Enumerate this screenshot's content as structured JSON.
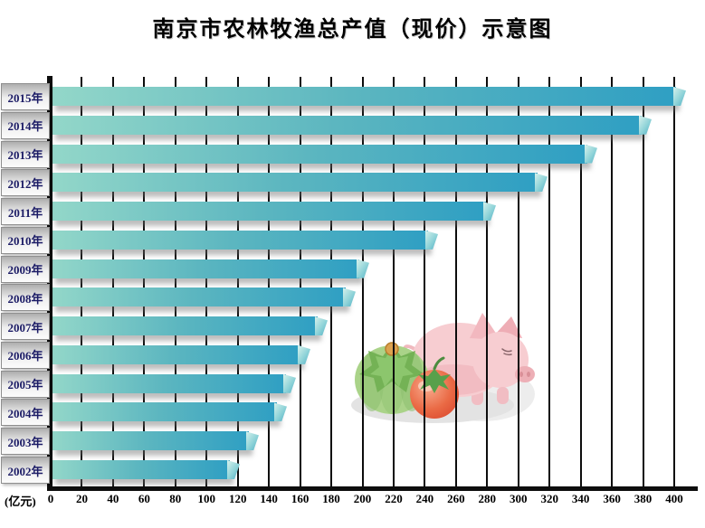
{
  "chart_data": {
    "type": "bar",
    "orientation": "horizontal",
    "title": "南京市农林牧渔总产值（现价）示意图",
    "xlabel": "(亿元)",
    "categories": [
      "2015年",
      "2014年",
      "2013年",
      "2012年",
      "2011年",
      "2010年",
      "2009年",
      "2008年",
      "2007年",
      "2006年",
      "2005年",
      "2004年",
      "2003年",
      "2002年"
    ],
    "values": [
      407,
      385,
      350,
      318,
      285,
      248,
      204,
      195,
      177,
      166,
      157,
      151,
      133,
      121
    ],
    "xlim": [
      0,
      400
    ],
    "xtick_step": 20,
    "xticks": [
      0,
      20,
      40,
      60,
      80,
      100,
      120,
      140,
      160,
      180,
      200,
      220,
      240,
      260,
      280,
      300,
      320,
      340,
      360,
      380,
      400
    ],
    "grid": true,
    "legend": false,
    "bar_color_left": "#93d7c9",
    "bar_color_right": "#2f9fc3",
    "bar_tip_color": "#d9f2ec",
    "gridline_color": "#0d0d0d",
    "year_label_text_color": "#1c1c66",
    "decorations": [
      "green-pumpkin",
      "tomato",
      "pig"
    ]
  }
}
